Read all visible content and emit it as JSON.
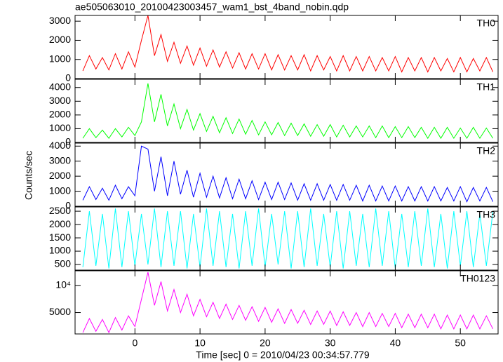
{
  "title": "ae505063010_20100423003457_wam1_bst_4band_nobin.qdp",
  "xlabel": "Time [sec] 0 = 2010/04/23 00:34:57.779",
  "ylabel": "Counts/sec",
  "chart_data": [
    {
      "type": "line",
      "label": "TH0",
      "color": "#ff0000",
      "x": [
        -8,
        -7,
        -6,
        -5,
        -4,
        -3,
        -2,
        -1,
        0,
        1,
        2,
        3,
        4,
        5,
        6,
        7,
        8,
        9,
        10,
        11,
        12,
        13,
        14,
        15,
        16,
        17,
        18,
        19,
        20,
        21,
        22,
        23,
        24,
        25,
        26,
        27,
        28,
        29,
        30,
        31,
        32,
        33,
        34,
        35,
        36,
        37,
        38,
        39,
        40,
        41,
        42,
        43,
        44,
        45,
        46,
        47,
        48,
        49,
        50,
        51,
        52,
        53,
        54,
        55
      ],
      "values": [
        400,
        1200,
        500,
        1100,
        450,
        1300,
        500,
        1400,
        600,
        2000,
        3300,
        1200,
        2300,
        900,
        1900,
        800,
        1700,
        700,
        1600,
        650,
        1500,
        600,
        1400,
        550,
        1350,
        500,
        1300,
        500,
        1300,
        450,
        1250,
        450,
        1200,
        450,
        1250,
        400,
        1200,
        450,
        1150,
        400,
        1200,
        400,
        1150,
        400,
        1150,
        400,
        1100,
        400,
        1150,
        350,
        1100,
        400,
        1100,
        350,
        1100,
        400,
        1050,
        350,
        1100,
        350,
        1050,
        400,
        1100,
        350
      ],
      "xlim": [
        -9.2,
        55.8
      ],
      "xticks": [
        0,
        10,
        20,
        30,
        40,
        50
      ],
      "ylim": [
        0,
        3300
      ],
      "yticks": [
        0,
        1000,
        2000,
        3000
      ]
    },
    {
      "type": "line",
      "label": "TH1",
      "color": "#00ff00",
      "x": [
        -8,
        -7,
        -6,
        -5,
        -4,
        -3,
        -2,
        -1,
        0,
        1,
        2,
        3,
        4,
        5,
        6,
        7,
        8,
        9,
        10,
        11,
        12,
        13,
        14,
        15,
        16,
        17,
        18,
        19,
        20,
        21,
        22,
        23,
        24,
        25,
        26,
        27,
        28,
        29,
        30,
        31,
        32,
        33,
        34,
        35,
        36,
        37,
        38,
        39,
        40,
        41,
        42,
        43,
        44,
        45,
        46,
        47,
        48,
        49,
        50,
        51,
        52,
        53,
        54,
        55
      ],
      "values": [
        300,
        1000,
        350,
        900,
        300,
        1000,
        400,
        1100,
        500,
        1500,
        4300,
        1500,
        3500,
        1200,
        2800,
        1000,
        2400,
        900,
        2100,
        800,
        1900,
        700,
        1800,
        650,
        1700,
        600,
        1600,
        550,
        1500,
        550,
        1450,
        500,
        1400,
        500,
        1350,
        450,
        1300,
        450,
        1300,
        400,
        1250,
        400,
        1200,
        400,
        1200,
        350,
        1200,
        350,
        1150,
        350,
        1150,
        350,
        1100,
        300,
        1100,
        300,
        1100,
        300,
        1050,
        300,
        1100,
        300,
        1050,
        300
      ],
      "xlim": [
        -9.2,
        55.8
      ],
      "xticks": [
        0,
        10,
        20,
        30,
        40,
        50
      ],
      "ylim": [
        0,
        4600
      ],
      "yticks": [
        0,
        1000,
        2000,
        3000,
        4000
      ]
    },
    {
      "type": "line",
      "label": "TH2",
      "color": "#0000ff",
      "x": [
        -8,
        -7,
        -6,
        -5,
        -4,
        -3,
        -2,
        -1,
        0,
        1,
        2,
        3,
        4,
        5,
        6,
        7,
        8,
        9,
        10,
        11,
        12,
        13,
        14,
        15,
        16,
        17,
        18,
        19,
        20,
        21,
        22,
        23,
        24,
        25,
        26,
        27,
        28,
        29,
        30,
        31,
        32,
        33,
        34,
        35,
        36,
        37,
        38,
        39,
        40,
        41,
        42,
        43,
        44,
        45,
        46,
        47,
        48,
        49,
        50,
        51,
        52,
        53,
        54,
        55
      ],
      "values": [
        400,
        1300,
        450,
        1200,
        400,
        1400,
        500,
        1300,
        700,
        4000,
        3800,
        1000,
        3300,
        700,
        3000,
        800,
        2400,
        600,
        2200,
        600,
        2000,
        550,
        1900,
        500,
        1800,
        500,
        1700,
        450,
        1600,
        450,
        1600,
        450,
        1550,
        400,
        1500,
        400,
        1500,
        400,
        1450,
        400,
        1450,
        400,
        1400,
        350,
        1400,
        350,
        1350,
        350,
        1350,
        350,
        1300,
        350,
        1300,
        350,
        1300,
        350,
        1250,
        350,
        1300,
        300,
        1250,
        350,
        1250,
        300
      ],
      "xlim": [
        -9.2,
        55.8
      ],
      "xticks": [
        0,
        10,
        20,
        30,
        40,
        50
      ],
      "ylim": [
        0,
        4200
      ],
      "yticks": [
        0,
        1000,
        2000,
        3000,
        4000
      ]
    },
    {
      "type": "line",
      "label": "TH3",
      "color": "#00ffff",
      "x": [
        -8,
        -7,
        -6,
        -5,
        -4,
        -3,
        -2,
        -1,
        0,
        1,
        2,
        3,
        4,
        5,
        6,
        7,
        8,
        9,
        10,
        11,
        12,
        13,
        14,
        15,
        16,
        17,
        18,
        19,
        20,
        21,
        22,
        23,
        24,
        25,
        26,
        27,
        28,
        29,
        30,
        31,
        32,
        33,
        34,
        35,
        36,
        37,
        38,
        39,
        40,
        41,
        42,
        43,
        44,
        45,
        46,
        47,
        48,
        49,
        50,
        51,
        52,
        53,
        54,
        55
      ],
      "values": [
        400,
        2500,
        450,
        2400,
        350,
        2600,
        400,
        2500,
        450,
        2400,
        500,
        2600,
        400,
        2500,
        450,
        2500,
        350,
        2400,
        400,
        2600,
        450,
        2500,
        400,
        2400,
        350,
        2500,
        450,
        2600,
        400,
        2400,
        500,
        2500,
        350,
        2500,
        400,
        2600,
        450,
        2400,
        400,
        2500,
        350,
        2500,
        450,
        2400,
        400,
        2600,
        450,
        2500,
        350,
        2400,
        400,
        2500,
        450,
        2600,
        400,
        2400,
        350,
        2500,
        450,
        2500,
        400,
        2400,
        450,
        2500
      ],
      "xlim": [
        -9.2,
        55.8
      ],
      "xticks": [
        0,
        10,
        20,
        30,
        40,
        50
      ],
      "ylim": [
        290,
        2660
      ],
      "yticks": [
        500,
        1000,
        1500,
        2000,
        2500
      ]
    },
    {
      "type": "line",
      "label": "TH0123",
      "color": "#ff00ff",
      "yscale": "log",
      "x": [
        -8,
        -7,
        -6,
        -5,
        -4,
        -3,
        -2,
        -1,
        0,
        1,
        2,
        3,
        4,
        5,
        6,
        7,
        8,
        9,
        10,
        11,
        12,
        13,
        14,
        15,
        16,
        17,
        18,
        19,
        20,
        21,
        22,
        23,
        24,
        25,
        26,
        27,
        28,
        29,
        30,
        31,
        32,
        33,
        34,
        35,
        36,
        37,
        38,
        39,
        40,
        41,
        42,
        43,
        44,
        45,
        46,
        47,
        48,
        49,
        50,
        51,
        52,
        53,
        54,
        55
      ],
      "values": [
        3000,
        4300,
        3100,
        4200,
        3000,
        4400,
        3200,
        4600,
        3500,
        7000,
        14000,
        6000,
        11000,
        5200,
        9000,
        5000,
        8000,
        4600,
        7000,
        4500,
        6500,
        4300,
        6200,
        4200,
        6000,
        4100,
        5800,
        4000,
        5700,
        3900,
        5500,
        3800,
        5400,
        3800,
        5300,
        3700,
        5200,
        3700,
        5200,
        3600,
        5100,
        3600,
        5000,
        3500,
        5000,
        3500,
        4900,
        3500,
        4900,
        3400,
        4800,
        3400,
        4800,
        3400,
        4800,
        3300,
        4700,
        3300,
        4700,
        3300,
        4700,
        3300,
        4600,
        3300
      ],
      "xlim": [
        -9.2,
        55.8
      ],
      "xticks": [
        0,
        10,
        20,
        30,
        40,
        50
      ],
      "ylim": [
        2900,
        14500
      ],
      "yticks": [
        5000,
        {
          "value": 10000,
          "label": "10⁴"
        }
      ]
    }
  ]
}
